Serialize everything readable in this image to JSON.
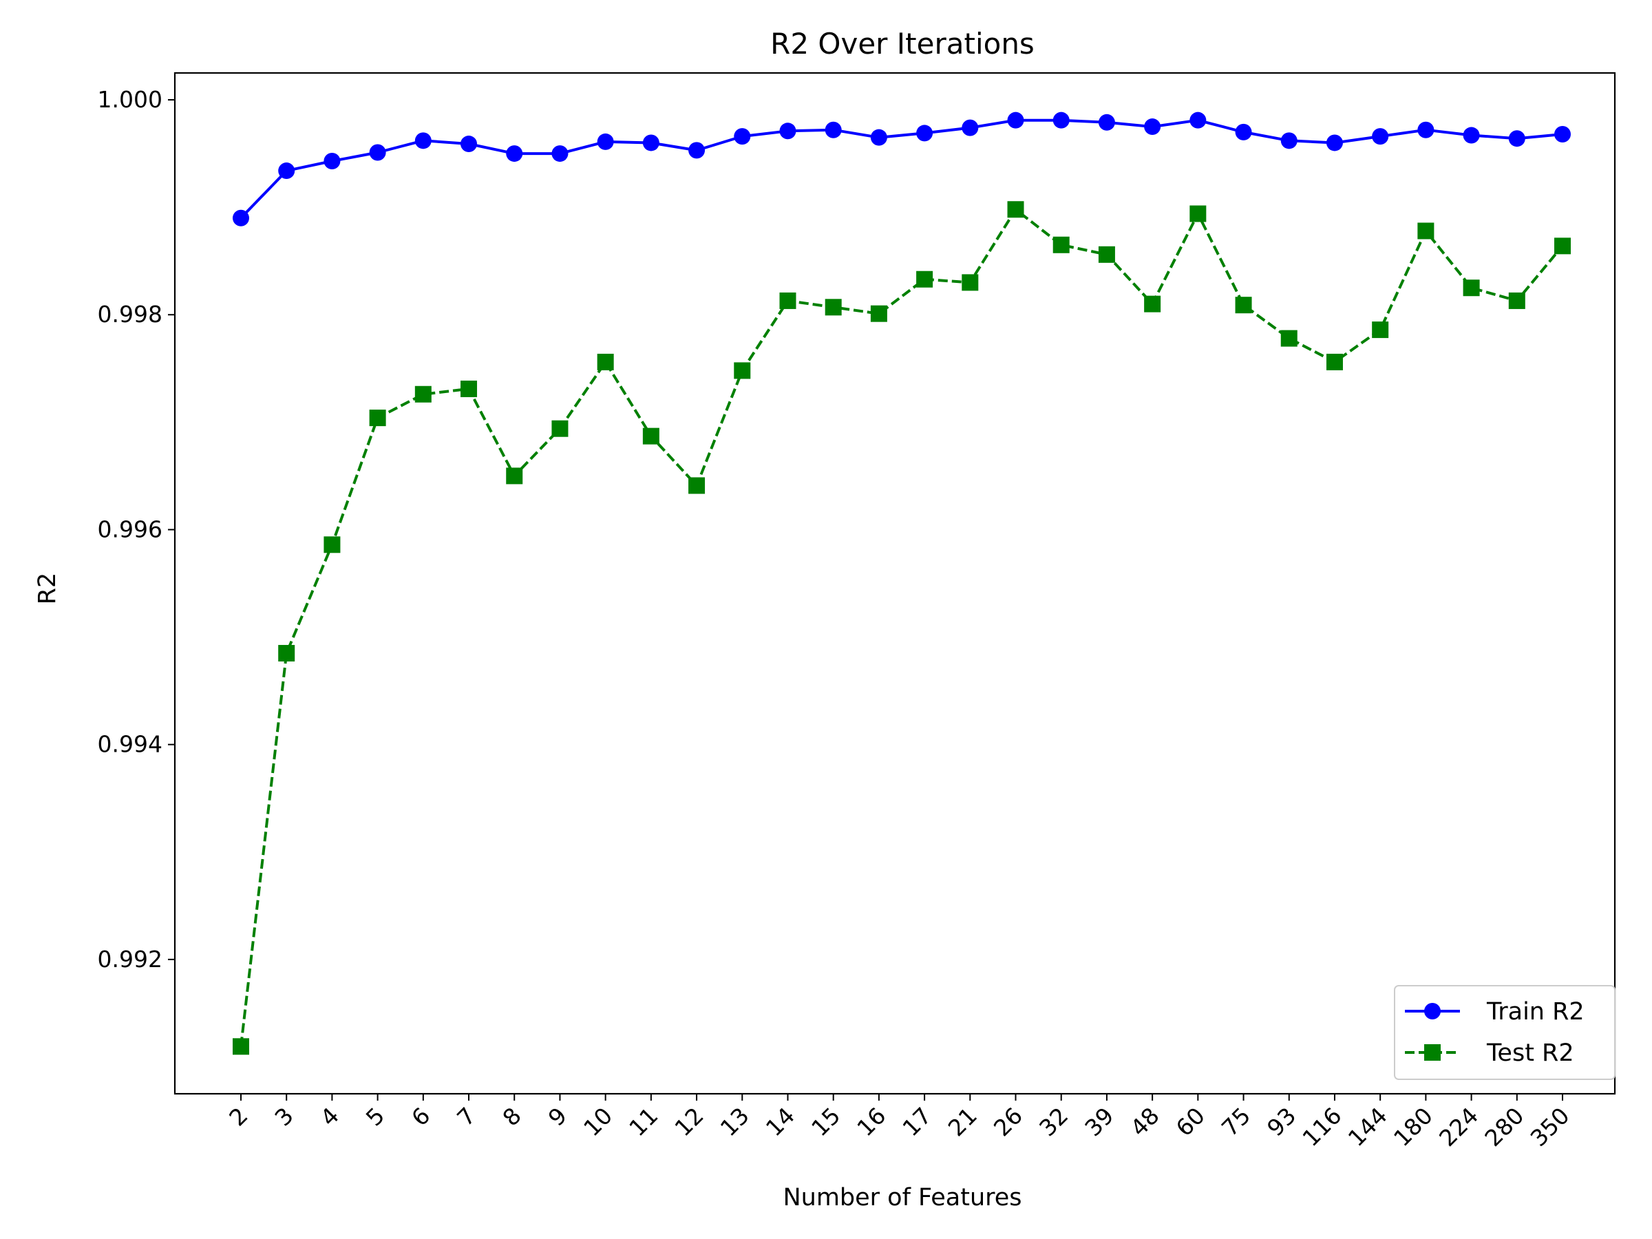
{
  "chart_data": {
    "type": "line",
    "title": "R2 Over Iterations",
    "xlabel": "Number of Features",
    "ylabel": "R2",
    "categories": [
      "2",
      "3",
      "4",
      "5",
      "6",
      "7",
      "8",
      "9",
      "10",
      "11",
      "12",
      "13",
      "14",
      "15",
      "16",
      "17",
      "21",
      "26",
      "32",
      "39",
      "48",
      "60",
      "75",
      "93",
      "116",
      "144",
      "180",
      "224",
      "280",
      "350"
    ],
    "series": [
      {
        "name": "Train R2",
        "color": "#0000ff",
        "line_style": "solid",
        "marker": "circle",
        "values": [
          0.9989,
          0.99934,
          0.99943,
          0.99951,
          0.99962,
          0.99959,
          0.9995,
          0.9995,
          0.99961,
          0.9996,
          0.99953,
          0.99966,
          0.99971,
          0.99972,
          0.99965,
          0.99969,
          0.99974,
          0.99981,
          0.99981,
          0.99979,
          0.99975,
          0.99981,
          0.9997,
          0.99962,
          0.9996,
          0.99966,
          0.99972,
          0.99967,
          0.99964,
          0.99968
        ]
      },
      {
        "name": "Test R2",
        "color": "#008000",
        "line_style": "dashed",
        "marker": "square",
        "values": [
          0.99119,
          0.99485,
          0.99586,
          0.99704,
          0.99726,
          0.99731,
          0.9965,
          0.99694,
          0.99756,
          0.99687,
          0.99641,
          0.99748,
          0.99813,
          0.99807,
          0.99801,
          0.99833,
          0.9983,
          0.99898,
          0.99865,
          0.99856,
          0.9981,
          0.99894,
          0.99809,
          0.99778,
          0.99756,
          0.99786,
          0.99878,
          0.99825,
          0.99813,
          0.99864
        ]
      }
    ],
    "ylim": [
      0.99075,
      1.00025
    ],
    "yticks": [
      "0.992",
      "0.994",
      "0.996",
      "0.998",
      "1.000"
    ],
    "ytick_values": [
      0.992,
      0.994,
      0.996,
      0.998,
      1.0
    ],
    "x_tick_rotation_deg": 45,
    "grid": false,
    "legend_position": "lower-right"
  }
}
